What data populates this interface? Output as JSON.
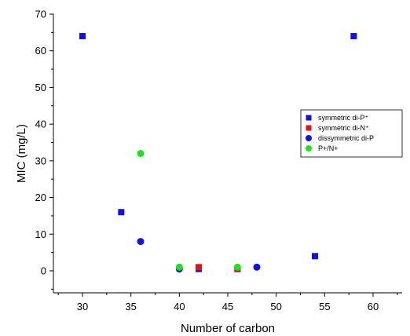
{
  "chart_data": {
    "type": "scatter",
    "title": "",
    "xlabel": "Number of carbon",
    "ylabel": "MIC (mg/L)",
    "xlim": [
      27,
      63
    ],
    "ylim": [
      -6,
      70
    ],
    "xticks": [
      30,
      35,
      40,
      45,
      50,
      55,
      60
    ],
    "yticks": [
      0,
      10,
      20,
      30,
      40,
      50,
      60,
      70
    ],
    "grid": false,
    "legend_position": "right",
    "series": [
      {
        "name": "symmetric di-P⁺",
        "marker": "square",
        "color": "#1010e8",
        "points": [
          [
            30,
            64
          ],
          [
            34,
            16
          ],
          [
            42,
            0.5
          ],
          [
            46,
            0.5
          ],
          [
            54,
            4
          ],
          [
            58,
            64
          ]
        ]
      },
      {
        "name": "symmetric di-N⁺",
        "marker": "square",
        "color": "#e81010",
        "points": [
          [
            42,
            1
          ],
          [
            46,
            0.5
          ]
        ]
      },
      {
        "name": "dissymmetric di-P",
        "marker": "circle",
        "color": "#1010e8",
        "points": [
          [
            36,
            8
          ],
          [
            40,
            0.5
          ],
          [
            48,
            1
          ]
        ]
      },
      {
        "name": "P+/N+",
        "marker": "circle",
        "color": "#19e619",
        "points": [
          [
            36,
            32
          ],
          [
            40,
            1
          ],
          [
            46,
            1
          ]
        ]
      }
    ]
  }
}
